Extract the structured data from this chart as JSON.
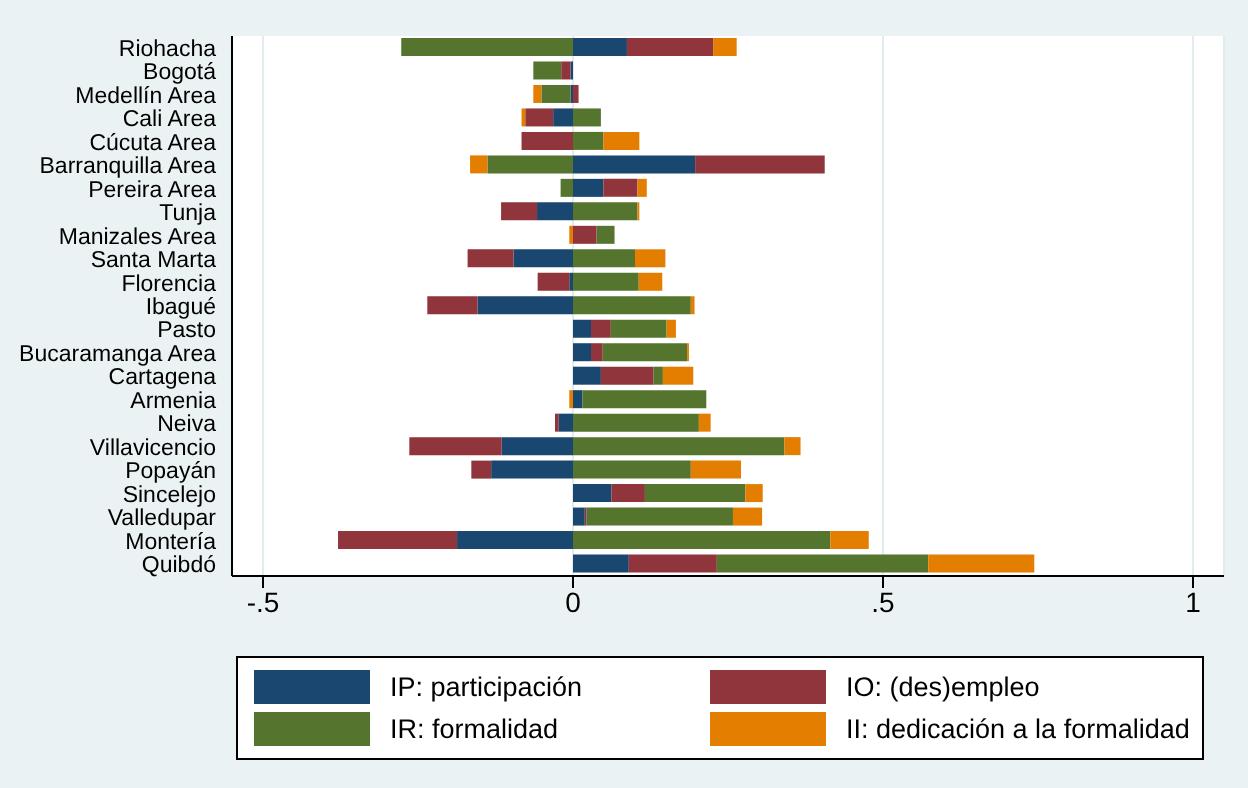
{
  "chart_data": {
    "type": "bar",
    "orientation": "horizontal",
    "stacked": true,
    "categories": [
      "Riohacha",
      "Bogotá",
      "Medellín Area",
      "Cali Area",
      "Cúcuta Area",
      "Barranquilla Area",
      "Pereira Area",
      "Tunja",
      "Manizales Area",
      "Santa Marta",
      "Florencia",
      "Ibagué",
      "Pasto",
      "Bucaramanga Area",
      "Cartagena",
      "Armenia",
      "Neiva",
      "Villavicencio",
      "Popayán",
      "Sincelejo",
      "Valledupar",
      "Montería",
      "Quibdó"
    ],
    "series": [
      {
        "name": "IP: participación",
        "color": "#1a476f",
        "values": [
          0.087,
          -0.004,
          -0.004,
          -0.032,
          0,
          0.197,
          0.049,
          -0.058,
          0,
          -0.096,
          -0.006,
          -0.154,
          0.029,
          0.029,
          0.045,
          0.015,
          -0.023,
          -0.115,
          -0.132,
          0.062,
          0.019,
          -0.187,
          0.09
        ]
      },
      {
        "name": "IO: (des)empleo",
        "color": "#90353b",
        "values": [
          0.139,
          -0.015,
          0.009,
          -0.045,
          -0.083,
          0.209,
          0.055,
          -0.058,
          0.038,
          -0.074,
          -0.051,
          -0.081,
          0.032,
          0.019,
          0.085,
          0,
          -0.006,
          -0.149,
          -0.032,
          0.054,
          0.003,
          -0.192,
          0.142
        ]
      },
      {
        "name": "IR: formalidad",
        "color": "#55752f",
        "values": [
          -0.277,
          -0.045,
          -0.047,
          0.045,
          0.049,
          -0.138,
          -0.02,
          0.104,
          0.029,
          0.1,
          0.106,
          0.19,
          0.09,
          0.136,
          0.015,
          0.2,
          0.203,
          0.341,
          0.19,
          0.162,
          0.236,
          0.415,
          0.341
        ]
      },
      {
        "name": "II: dedicación a la formalidad",
        "color": "#e37e00",
        "values": [
          0.038,
          0,
          -0.013,
          -0.006,
          0.058,
          -0.028,
          0.015,
          0.003,
          -0.006,
          0.049,
          0.038,
          0.006,
          0.015,
          0.003,
          0.049,
          -0.006,
          0.019,
          0.026,
          0.081,
          0.028,
          0.047,
          0.062,
          0.171
        ]
      }
    ],
    "xlim": [
      -0.55,
      1.05
    ],
    "xticks": [
      {
        "value": -0.5,
        "label": "-.5"
      },
      0,
      {
        "value": 0.5,
        "label": ".5"
      },
      1
    ],
    "grid": "x",
    "legend": "bottom"
  }
}
